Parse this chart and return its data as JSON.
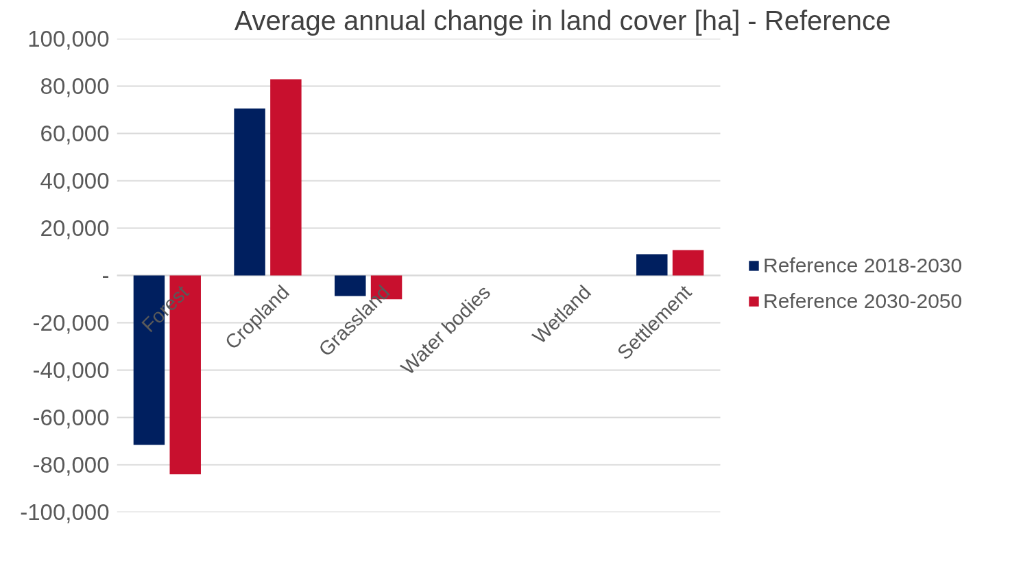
{
  "chart_data": {
    "type": "bar",
    "title": "Average annual change in land cover [ha] - Reference",
    "categories": [
      "Forest",
      "Cropland",
      "Grassland",
      "Water bodies",
      "Wetland",
      "Settlement"
    ],
    "series": [
      {
        "name": "Reference 2018-2030",
        "color": "#001f5f",
        "values": [
          -71600,
          70500,
          -8700,
          0,
          0,
          9000
        ]
      },
      {
        "name": "Reference 2030-2050",
        "color": "#c8102e",
        "values": [
          -84000,
          82900,
          -10100,
          0,
          0,
          10700
        ]
      }
    ],
    "ylim": [
      -100000,
      100000
    ],
    "yticks": [
      {
        "value": -100000,
        "label": "-100,000"
      },
      {
        "value": -80000,
        "label": "-80,000"
      },
      {
        "value": -60000,
        "label": "-60,000"
      },
      {
        "value": -40000,
        "label": "-40,000"
      },
      {
        "value": -20000,
        "label": "-20,000"
      },
      {
        "value": 0,
        "label": "-"
      },
      {
        "value": 20000,
        "label": "20,000"
      },
      {
        "value": 40000,
        "label": "40,000"
      },
      {
        "value": 60000,
        "label": "60,000"
      },
      {
        "value": 80000,
        "label": "80,000"
      },
      {
        "value": 100000,
        "label": "100,000"
      }
    ],
    "grid": "y",
    "legend": "right"
  }
}
